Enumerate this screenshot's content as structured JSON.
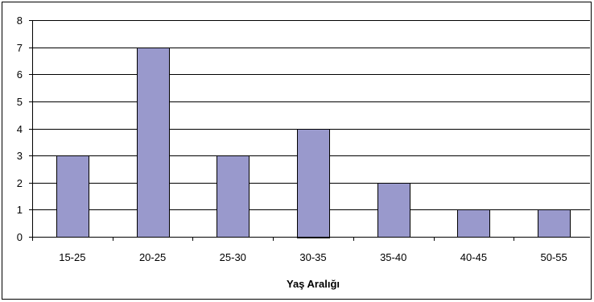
{
  "chart_data": {
    "type": "bar",
    "categories": [
      "15-25",
      "20-25",
      "25-30",
      "30-35",
      "35-40",
      "40-45",
      "50-55"
    ],
    "values": [
      3,
      7,
      3,
      4,
      2,
      1,
      1
    ],
    "title": "",
    "xlabel": "Yaş Aralığı",
    "ylabel": "",
    "ylim": [
      0,
      8
    ],
    "yticks": [
      0,
      1,
      2,
      3,
      4,
      5,
      6,
      7,
      8
    ],
    "grid": true,
    "legend": "none",
    "bar_color": "#9999cc",
    "bar_edge_color": "#000000",
    "grid_color": "#000000"
  }
}
